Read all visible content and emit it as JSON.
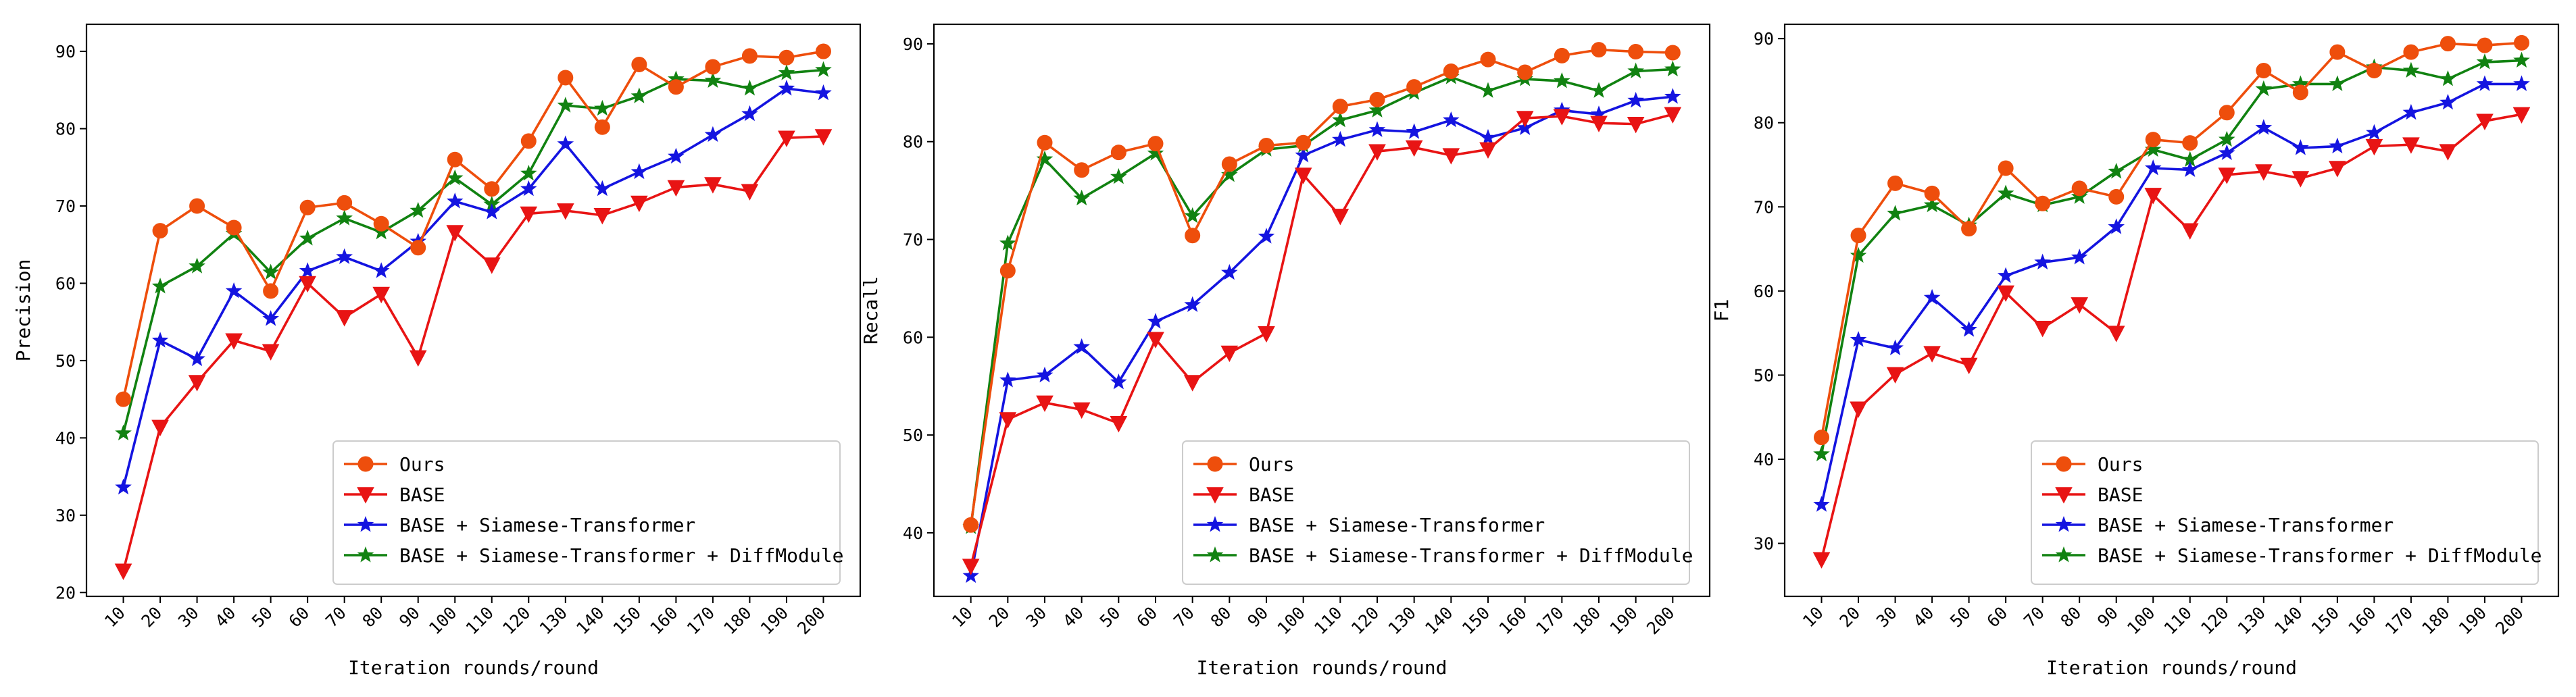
{
  "chart_data": [
    {
      "type": "line",
      "xlabel": "Iteration rounds/round",
      "ylabel": "Precision",
      "x": [
        "10",
        "20",
        "30",
        "40",
        "50",
        "60",
        "70",
        "80",
        "90",
        "100",
        "110",
        "120",
        "130",
        "140",
        "150",
        "160",
        "170",
        "180",
        "190",
        "200"
      ],
      "ylim": [
        19.5,
        93.5
      ],
      "yticks": [
        20,
        30,
        40,
        50,
        60,
        70,
        80,
        90
      ],
      "grid": false,
      "legend_position": "lower-right",
      "series": [
        {
          "name": "Ours",
          "color": "#ee4e0c",
          "marker": "circle",
          "values": [
            45.0,
            66.8,
            70.0,
            67.2,
            59.0,
            69.8,
            70.4,
            67.7,
            64.6,
            76.0,
            72.2,
            78.4,
            86.6,
            80.2,
            88.3,
            85.4,
            88.0,
            89.4,
            89.2,
            90.0
          ]
        },
        {
          "name": "BASE",
          "color": "#e81414",
          "marker": "triangle-down",
          "values": [
            22.8,
            41.4,
            47.2,
            52.6,
            51.2,
            60.0,
            55.6,
            58.6,
            50.4,
            66.6,
            62.4,
            69.0,
            69.4,
            68.8,
            70.4,
            72.4,
            72.8,
            71.9,
            78.8,
            79.0
          ]
        },
        {
          "name": "BASE + Siamese-Transformer",
          "color": "#1414e0",
          "marker": "star",
          "values": [
            33.6,
            52.6,
            50.2,
            59.0,
            55.4,
            61.6,
            63.4,
            61.6,
            65.4,
            70.6,
            69.2,
            72.2,
            78.0,
            72.2,
            74.4,
            76.4,
            79.2,
            81.9,
            85.2,
            84.6
          ]
        },
        {
          "name": "BASE + Siamese-Transformer + DiffModule",
          "color": "#118211",
          "marker": "star",
          "values": [
            40.6,
            59.6,
            62.2,
            66.4,
            61.4,
            65.8,
            68.4,
            66.6,
            69.4,
            73.6,
            70.2,
            74.2,
            83.0,
            82.6,
            84.2,
            86.4,
            86.2,
            85.2,
            87.2,
            87.6
          ]
        }
      ]
    },
    {
      "type": "line",
      "xlabel": "Iteration rounds/round",
      "ylabel": "Recall",
      "x": [
        "10",
        "20",
        "30",
        "40",
        "50",
        "60",
        "70",
        "80",
        "90",
        "100",
        "110",
        "120",
        "130",
        "140",
        "150",
        "160",
        "170",
        "180",
        "190",
        "200"
      ],
      "ylim": [
        33.5,
        92.0
      ],
      "yticks": [
        40,
        50,
        60,
        70,
        80,
        90
      ],
      "grid": false,
      "legend_position": "lower-right",
      "series": [
        {
          "name": "Ours",
          "color": "#ee4e0c",
          "marker": "circle",
          "values": [
            40.8,
            66.8,
            79.9,
            77.1,
            78.9,
            79.8,
            70.4,
            77.7,
            79.6,
            79.9,
            83.6,
            84.3,
            85.6,
            87.2,
            88.4,
            87.1,
            88.8,
            89.4,
            89.2,
            89.1
          ]
        },
        {
          "name": "BASE",
          "color": "#e81414",
          "marker": "triangle-down",
          "values": [
            36.6,
            51.6,
            53.3,
            52.6,
            51.2,
            59.8,
            55.4,
            58.4,
            60.4,
            76.6,
            72.4,
            79.0,
            79.4,
            78.6,
            79.2,
            82.4,
            82.6,
            81.9,
            81.8,
            82.8
          ]
        },
        {
          "name": "BASE + Siamese-Transformer",
          "color": "#1414e0",
          "marker": "star",
          "values": [
            35.6,
            55.6,
            56.1,
            59.0,
            55.4,
            61.6,
            63.3,
            66.6,
            70.3,
            78.6,
            80.2,
            81.2,
            81.0,
            82.2,
            80.4,
            81.4,
            83.2,
            82.8,
            84.2,
            84.6
          ]
        },
        {
          "name": "BASE + Siamese-Transformer + DiffModule",
          "color": "#118211",
          "marker": "star",
          "values": [
            40.6,
            69.6,
            78.2,
            74.2,
            76.4,
            78.8,
            72.4,
            76.6,
            79.2,
            79.6,
            82.2,
            83.2,
            85.0,
            86.6,
            85.2,
            86.4,
            86.2,
            85.2,
            87.2,
            87.4
          ]
        }
      ]
    },
    {
      "type": "line",
      "xlabel": "Iteration rounds/round",
      "ylabel": "F1",
      "x": [
        "10",
        "20",
        "30",
        "40",
        "50",
        "60",
        "70",
        "80",
        "90",
        "100",
        "110",
        "120",
        "130",
        "140",
        "150",
        "160",
        "170",
        "180",
        "190",
        "200"
      ],
      "ylim": [
        23.7,
        91.7
      ],
      "yticks": [
        30,
        40,
        50,
        60,
        70,
        80,
        90
      ],
      "grid": false,
      "legend_position": "lower-right",
      "series": [
        {
          "name": "Ours",
          "color": "#ee4e0c",
          "marker": "circle",
          "values": [
            42.6,
            66.6,
            72.8,
            71.6,
            67.4,
            74.6,
            70.4,
            72.2,
            71.2,
            78.0,
            77.6,
            81.2,
            86.2,
            83.6,
            88.4,
            86.2,
            88.4,
            89.4,
            89.2,
            89.5
          ]
        },
        {
          "name": "BASE",
          "color": "#e81414",
          "marker": "triangle-down",
          "values": [
            28.1,
            46.0,
            50.1,
            52.6,
            51.2,
            59.8,
            55.6,
            58.4,
            55.0,
            71.4,
            67.2,
            73.8,
            74.2,
            73.4,
            74.6,
            77.2,
            77.4,
            76.6,
            80.2,
            81.0
          ]
        },
        {
          "name": "BASE + Siamese-Transformer",
          "color": "#1414e0",
          "marker": "star",
          "values": [
            34.6,
            54.2,
            53.2,
            59.2,
            55.4,
            61.8,
            63.4,
            64.0,
            67.6,
            74.6,
            74.4,
            76.4,
            79.4,
            77.0,
            77.2,
            78.8,
            81.2,
            82.4,
            84.6,
            84.6
          ]
        },
        {
          "name": "BASE + Siamese-Transformer + DiffModule",
          "color": "#118211",
          "marker": "star",
          "values": [
            40.6,
            64.2,
            69.2,
            70.2,
            67.8,
            71.6,
            70.2,
            71.2,
            74.2,
            76.8,
            75.6,
            78.0,
            84.0,
            84.6,
            84.6,
            86.6,
            86.2,
            85.2,
            87.2,
            87.4
          ]
        }
      ]
    }
  ]
}
